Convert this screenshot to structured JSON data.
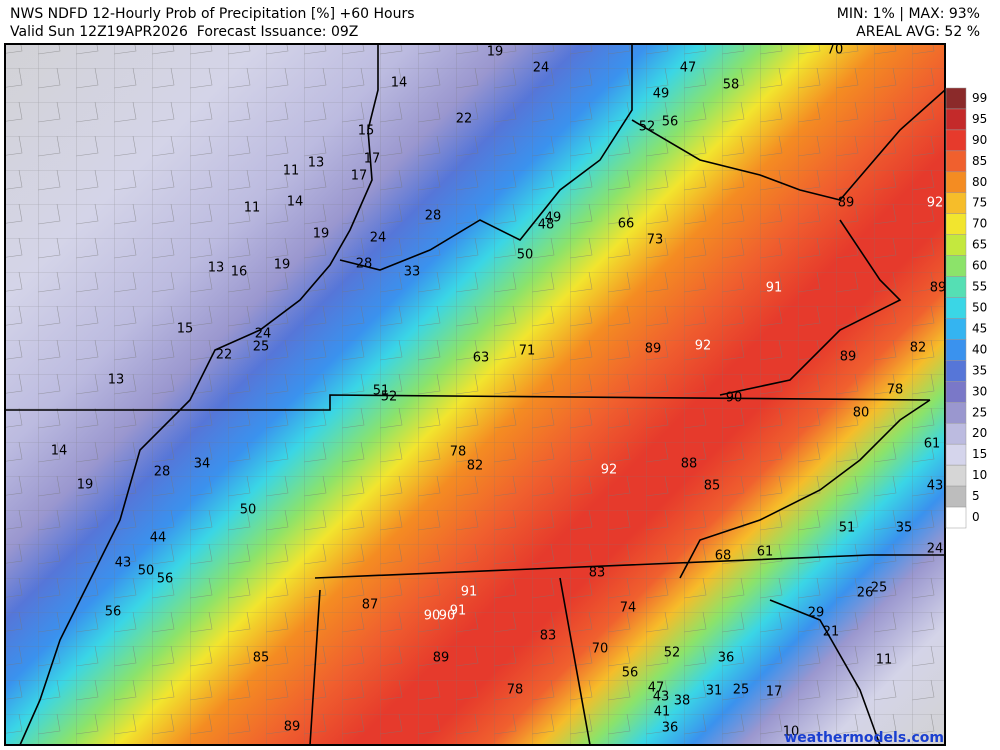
{
  "header": {
    "title": "NWS NDFD 12-Hourly Prob of Precipitation [%] +60 Hours",
    "subtitle": "Valid Sun 12Z19APR2026  Forecast Issuance: 09Z",
    "min_max": "MIN: 1% | MAX: 93%",
    "areal_avg": "AREAL AVG: 52 %"
  },
  "credit": "weathermodels.com",
  "legend": {
    "items": [
      {
        "value": 99,
        "color": "#8b2a2a"
      },
      {
        "value": 95,
        "color": "#c42a2a"
      },
      {
        "value": 90,
        "color": "#e63a2c"
      },
      {
        "value": 85,
        "color": "#f0602e"
      },
      {
        "value": 80,
        "color": "#f48c22"
      },
      {
        "value": 75,
        "color": "#f6bd2a"
      },
      {
        "value": 70,
        "color": "#f2e52e"
      },
      {
        "value": 65,
        "color": "#c4e83e"
      },
      {
        "value": 60,
        "color": "#8ce36a"
      },
      {
        "value": 55,
        "color": "#55dfb4"
      },
      {
        "value": 50,
        "color": "#3ad6e6"
      },
      {
        "value": 45,
        "color": "#34b4f1"
      },
      {
        "value": 40,
        "color": "#3a92ee"
      },
      {
        "value": 35,
        "color": "#5676d8"
      },
      {
        "value": 30,
        "color": "#7a78c8"
      },
      {
        "value": 25,
        "color": "#9a97cf"
      },
      {
        "value": 20,
        "color": "#bcbbe0"
      },
      {
        "value": 15,
        "color": "#d5d5ec"
      },
      {
        "value": 10,
        "color": "#d6d6d6"
      },
      {
        "value": 5,
        "color": "#bdbdbd"
      },
      {
        "value": 0,
        "color": "#ffffff"
      }
    ]
  },
  "map_labels": [
    19,
    24,
    70,
    47,
    14,
    58,
    49,
    22,
    15,
    52,
    56,
    17,
    11,
    13,
    17,
    14,
    92,
    89,
    11,
    28,
    49,
    48,
    66,
    73,
    19,
    24,
    50,
    13,
    16,
    19,
    28,
    33,
    91,
    89,
    15,
    24,
    25,
    22,
    63,
    71,
    89,
    92,
    89,
    82,
    13,
    51,
    52,
    90,
    78,
    80,
    61,
    14,
    78,
    82,
    92,
    88,
    28,
    34,
    85,
    43,
    19,
    50,
    51,
    35,
    44,
    24,
    68,
    61,
    43,
    50,
    56,
    83,
    91,
    26,
    25,
    87,
    90,
    90,
    91,
    74,
    29,
    56,
    21,
    83,
    70,
    52,
    36,
    11,
    85,
    89,
    56,
    47,
    43,
    38,
    31,
    25,
    17,
    78,
    41,
    36,
    89,
    10
  ]
}
